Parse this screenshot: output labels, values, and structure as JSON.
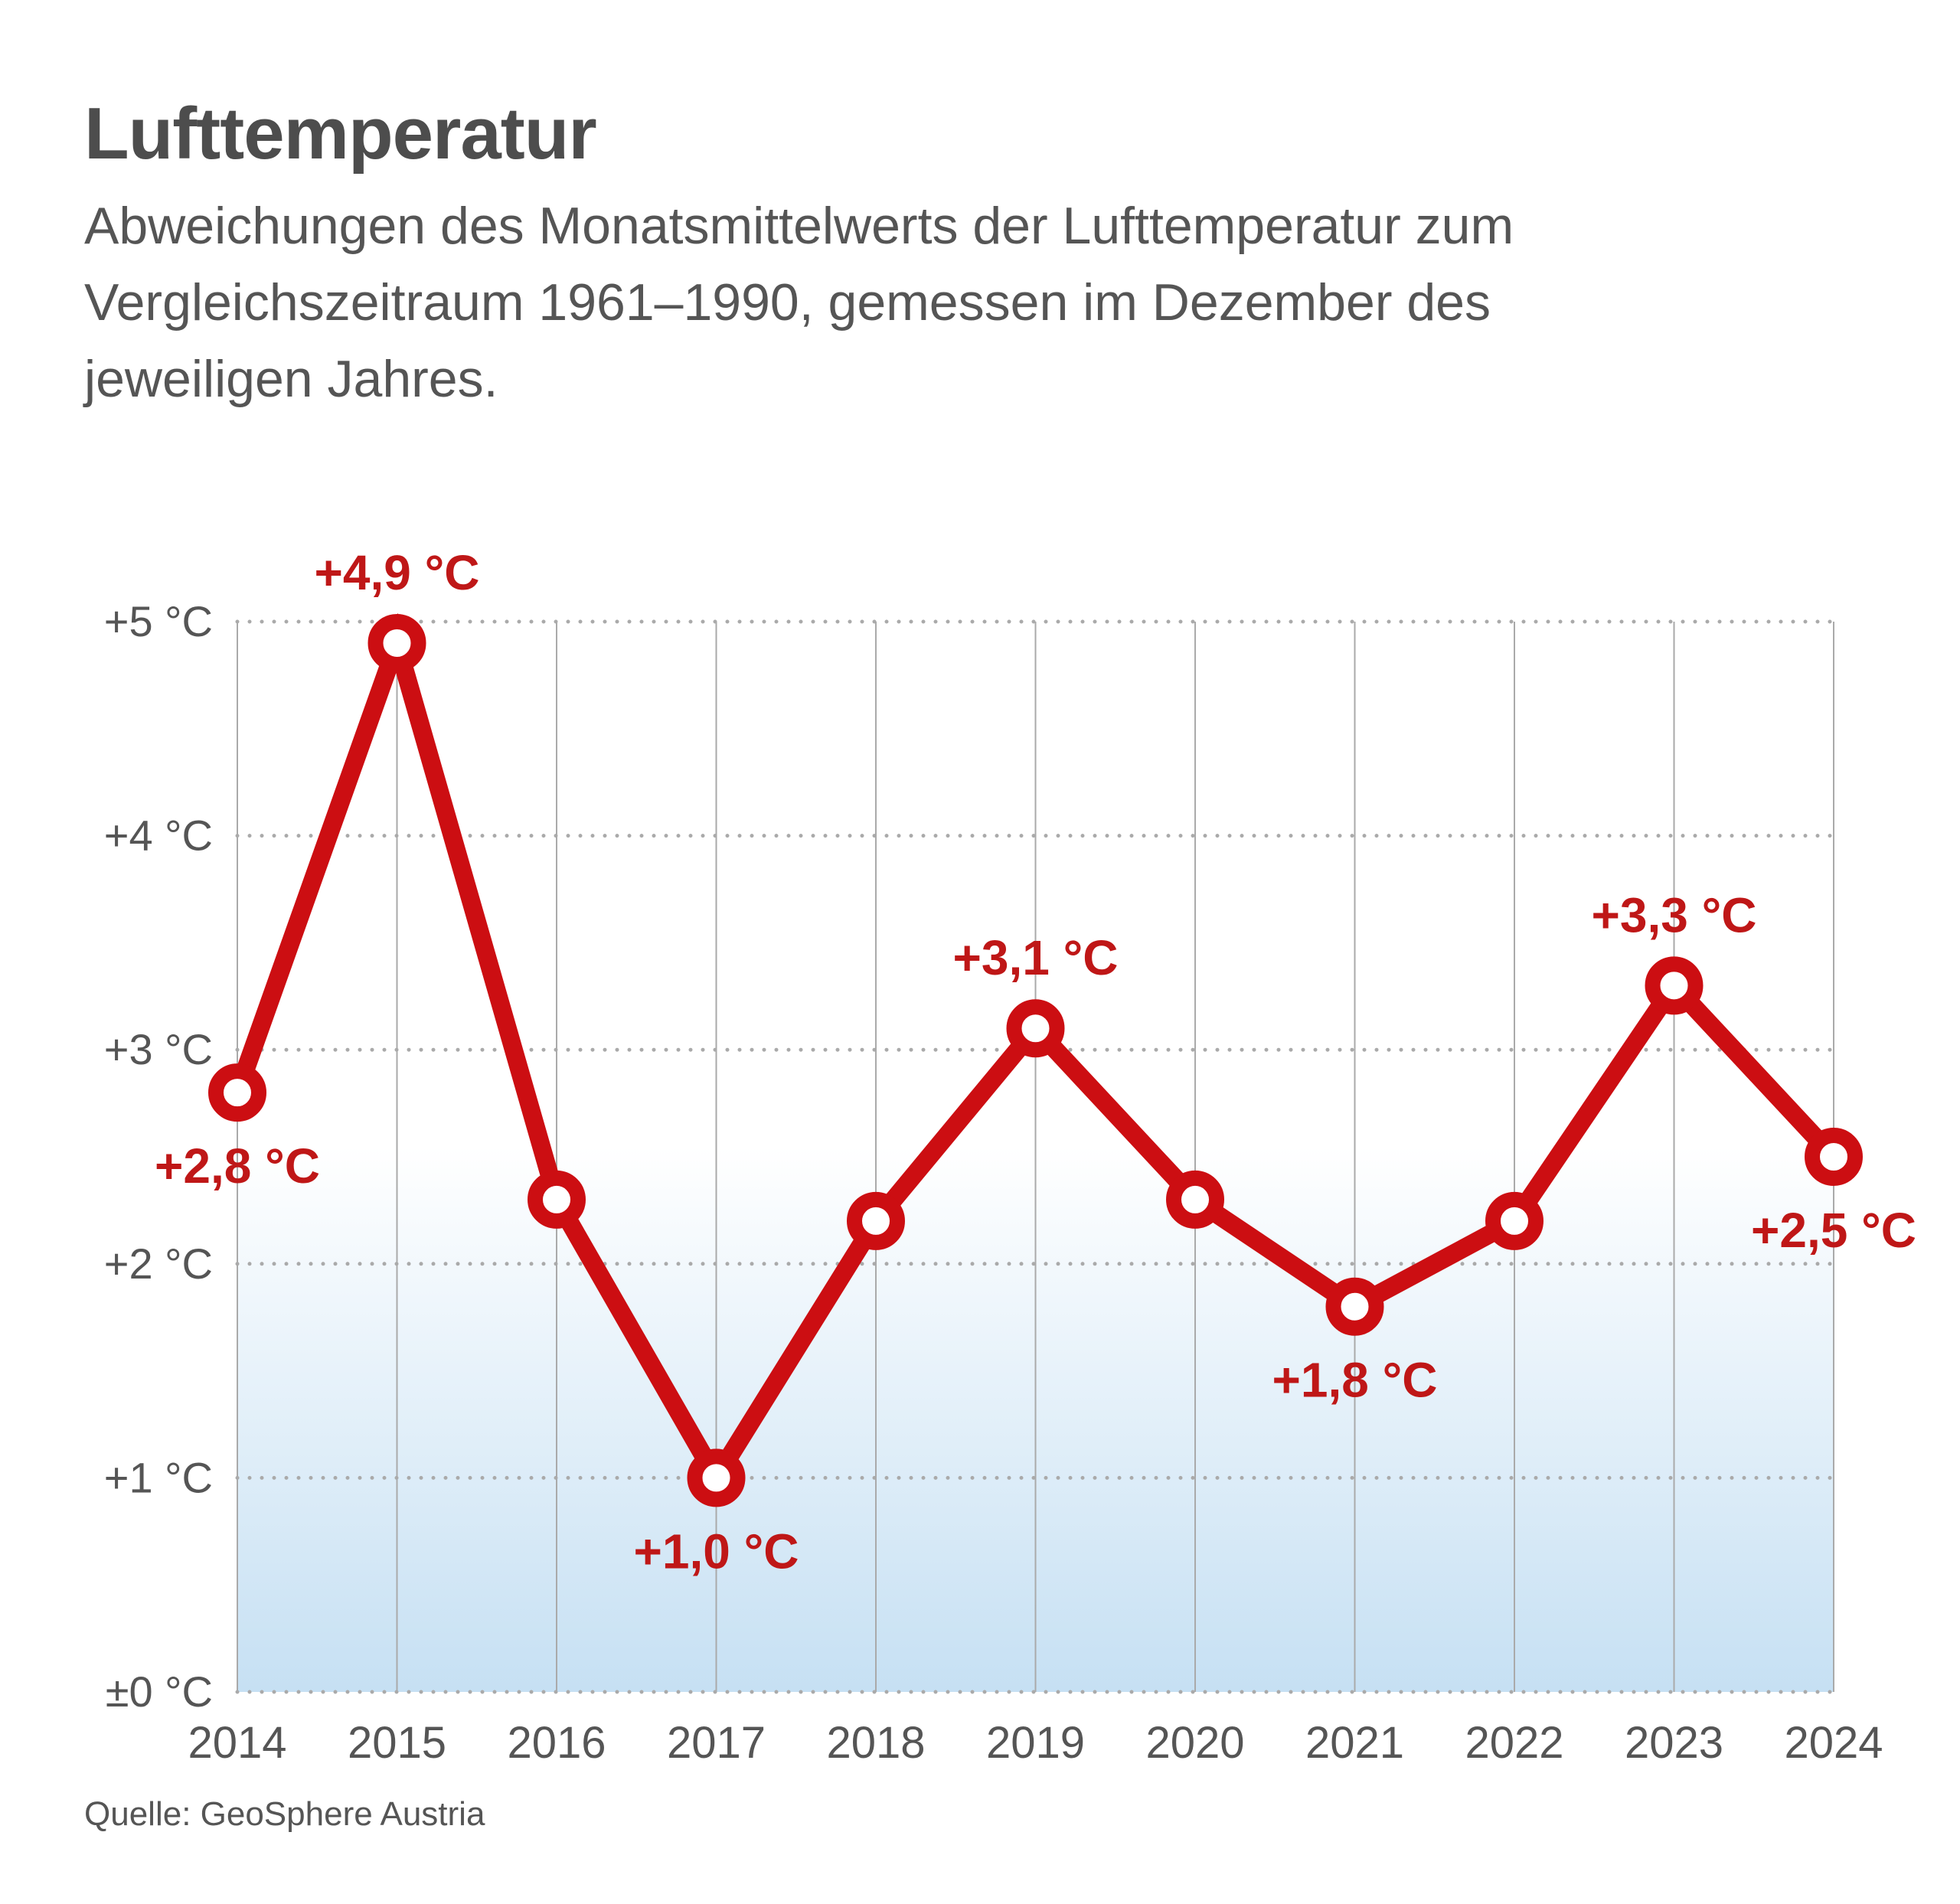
{
  "title": "Lufttemperatur",
  "subtitle": "Abweichungen des Monatsmittelwerts der Lufttemperatur zum Vergleichszeitraum 1961–1990, gemessen im Dezember des jeweiligen Jahres.",
  "source": "Quelle: GeoSphere Austria",
  "colors": {
    "line": "#cc0e12",
    "label": "#bf1717",
    "grid": "#aaaaaa",
    "axis_text": "#555555",
    "fill_top": "#ffffff",
    "fill_bottom": "#c6e0f3"
  },
  "chart_data": {
    "type": "line",
    "x": [
      "2014",
      "2015",
      "2016",
      "2017",
      "2018",
      "2019",
      "2020",
      "2021",
      "2022",
      "2023",
      "2024"
    ],
    "series": [
      {
        "values": [
          2.8,
          4.9,
          2.3,
          1.0,
          2.2,
          3.1,
          2.3,
          1.8,
          2.2,
          3.3,
          2.5
        ]
      }
    ],
    "ylim": [
      0,
      5
    ],
    "yticks": [
      0,
      1,
      2,
      3,
      4,
      5
    ],
    "ytick_labels": [
      "±0 °C",
      "+1 °C",
      "+2 °C",
      "+3 °C",
      "+4 °C",
      "+5 °C"
    ],
    "grid": true,
    "annotations": [
      {
        "x": "2014",
        "text": "+2,8 °C",
        "position": "below"
      },
      {
        "x": "2015",
        "text": "+4,9 °C",
        "position": "above"
      },
      {
        "x": "2017",
        "text": "+1,0 °C",
        "position": "below"
      },
      {
        "x": "2019",
        "text": "+3,1 °C",
        "position": "above"
      },
      {
        "x": "2021",
        "text": "+1,8 °C",
        "position": "below"
      },
      {
        "x": "2023",
        "text": "+3,3 °C",
        "position": "above"
      },
      {
        "x": "2024",
        "text": "+2,5 °C",
        "position": "below"
      }
    ]
  }
}
